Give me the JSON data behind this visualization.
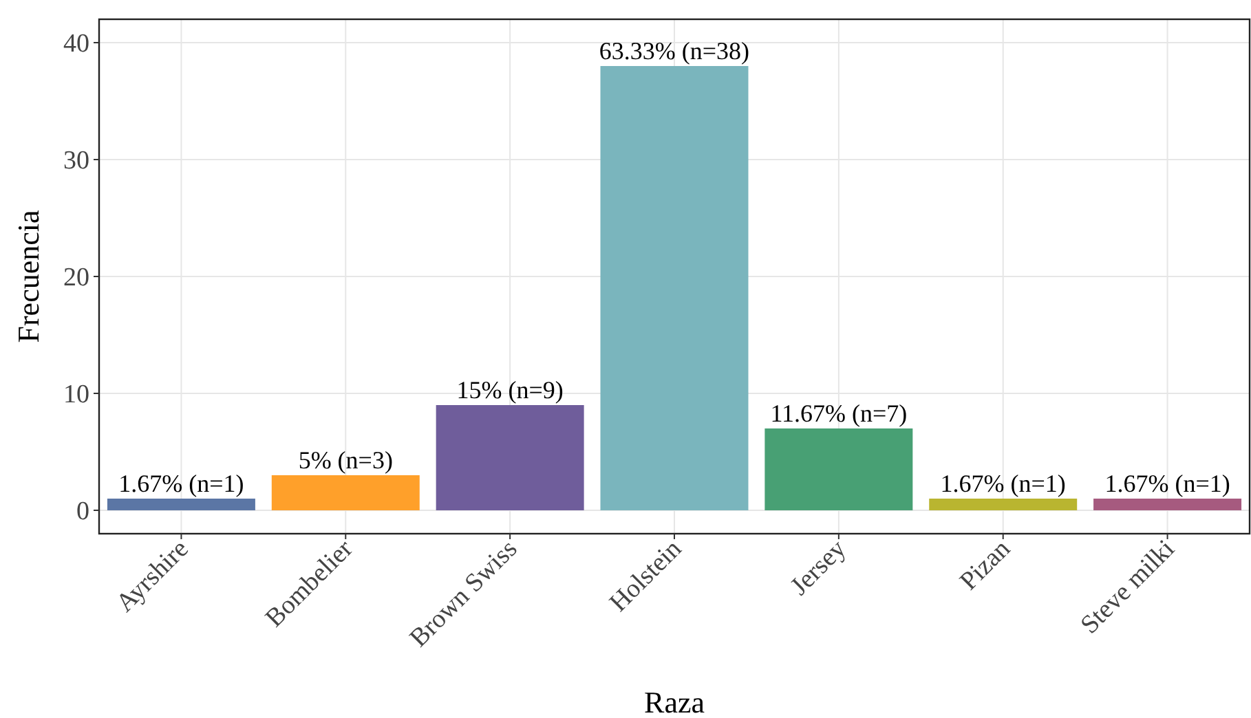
{
  "chart_data": {
    "type": "bar",
    "xlabel": "Raza",
    "ylabel": "Frecuencia",
    "categories": [
      "Ayrshire",
      "Bombelier",
      "Brown Swiss",
      "Holstein",
      "Jersey",
      "Pizan",
      "Steve milki"
    ],
    "values": [
      1,
      3,
      9,
      38,
      7,
      1,
      1
    ],
    "colors": [
      "#5b76a5",
      "#ffa02a",
      "#6f5d9b",
      "#7ab5bd",
      "#48a074",
      "#b9b530",
      "#a65a7f"
    ],
    "value_labels": [
      "1.67% (n=1)",
      "5% (n=3)",
      "15% (n=9)",
      "63.33% (n=38)",
      "11.67% (n=7)",
      "1.67% (n=1)",
      "1.67% (n=1)"
    ],
    "ylim": [
      -2,
      42
    ],
    "yticks": [
      0,
      10,
      20,
      30,
      40
    ],
    "grid": true
  }
}
